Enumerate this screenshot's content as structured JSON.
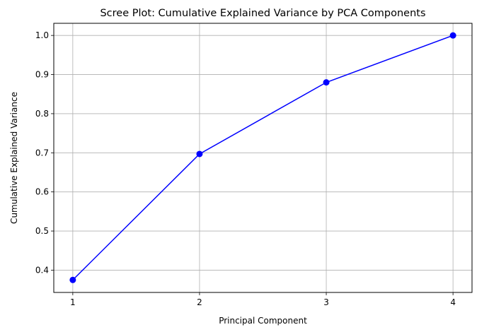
{
  "chart_data": {
    "type": "line",
    "title": "Scree Plot: Cumulative Explained Variance by PCA Components",
    "xlabel": "Principal Component",
    "ylabel": "Cumulative Explained Variance",
    "x": [
      1,
      2,
      3,
      4
    ],
    "xticks": [
      "1",
      "2",
      "3",
      "4"
    ],
    "yticks": [
      "0.4",
      "0.5",
      "0.6",
      "0.7",
      "0.8",
      "0.9",
      "1.0"
    ],
    "ylim": [
      0.343,
      1.031
    ],
    "xlim": [
      0.85,
      4.15
    ],
    "grid": true,
    "series": [
      {
        "values": [
          0.375,
          0.697,
          0.88,
          1.0
        ],
        "color": "#0000ff",
        "marker": "circle"
      }
    ]
  }
}
